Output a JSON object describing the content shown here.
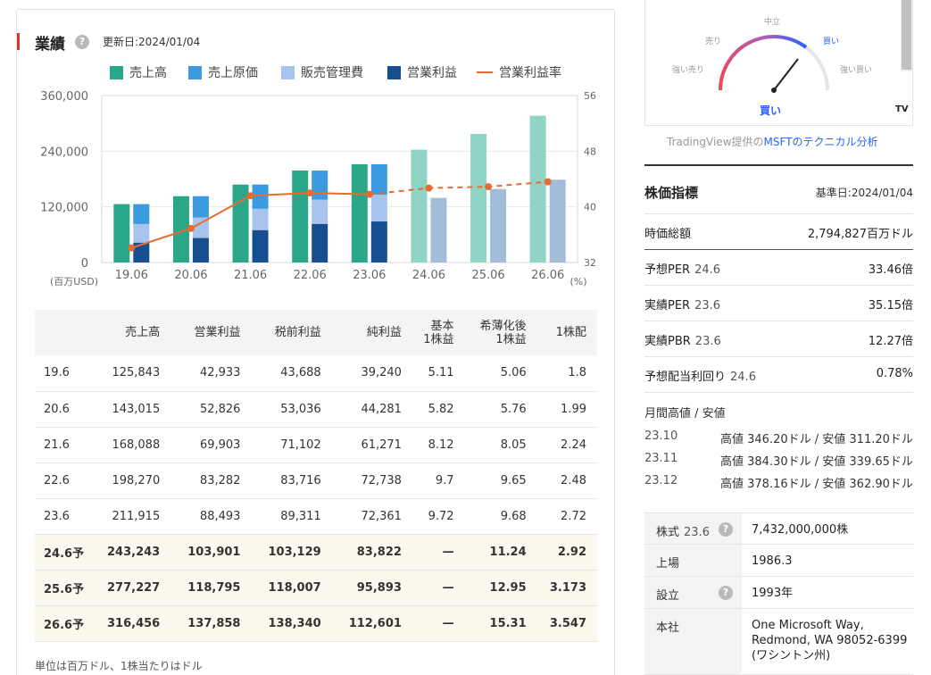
{
  "performance": {
    "title": "業績",
    "help_icon": "?",
    "update_date": "更新日:2024/01/04"
  },
  "legend": [
    {
      "label": "売上高",
      "color": "#2aa789",
      "kind": "box"
    },
    {
      "label": "売上原価",
      "color": "#3c9be0",
      "kind": "box"
    },
    {
      "label": "販売管理費",
      "color": "#a9c3ef",
      "kind": "box"
    },
    {
      "label": "営業利益",
      "color": "#174e8f",
      "kind": "box"
    },
    {
      "label": "営業利益率",
      "color": "#e86b2f",
      "kind": "line"
    }
  ],
  "chart_data": {
    "type": "bar",
    "categories": [
      "19.06",
      "20.06",
      "21.06",
      "22.06",
      "23.06",
      "24.06",
      "25.06",
      "26.06"
    ],
    "y_left": {
      "min": 0,
      "max": 360000,
      "ticks": [
        "0",
        "120,000",
        "240,000",
        "360,000"
      ],
      "tick_values": [
        0,
        120000,
        240000,
        360000
      ],
      "unit": "(百万USD)"
    },
    "y_right": {
      "min": 32,
      "max": 56,
      "ticks": [
        "32",
        "40",
        "48",
        "56"
      ],
      "tick_values": [
        32,
        40,
        48,
        56
      ],
      "unit": "(%)"
    },
    "series": [
      {
        "name": "売上高",
        "values": [
          125843,
          143015,
          168088,
          198270,
          211915,
          243243,
          277227,
          316456
        ]
      },
      {
        "name": "売上原価",
        "values": [
          42910,
          46078,
          52232,
          62650,
          65863,
          null,
          null,
          null
        ]
      },
      {
        "name": "販売管理費",
        "values": [
          40000,
          44111,
          45940,
          52338,
          57529,
          null,
          null,
          null
        ]
      },
      {
        "name": "営業利益",
        "values": [
          42933,
          52826,
          69903,
          83282,
          88493,
          null,
          null,
          null
        ]
      },
      {
        "name": "営業利益率",
        "values": [
          34.1,
          36.9,
          41.6,
          42.0,
          41.8,
          42.7,
          42.9,
          43.6
        ]
      }
    ],
    "forecast_start_index": 5,
    "colors": {
      "sales_actual": "#2aa789",
      "sales_forecast": "#8fd4c4",
      "cost_forecast": "#a3bcd8",
      "grid": "#e8e8e8",
      "line": "#e86b2f"
    }
  },
  "table": {
    "headers": [
      "",
      "売上高",
      "営業利益",
      "税前利益",
      "純利益",
      "基本\n1株益",
      "希薄化後\n1株益",
      "1株配"
    ],
    "rows": [
      {
        "period": "19.6",
        "cells": [
          "125,843",
          "42,933",
          "43,688",
          "39,240",
          "5.11",
          "5.06",
          "1.8"
        ],
        "forecast": false
      },
      {
        "period": "20.6",
        "cells": [
          "143,015",
          "52,826",
          "53,036",
          "44,281",
          "5.82",
          "5.76",
          "1.99"
        ],
        "forecast": false
      },
      {
        "period": "21.6",
        "cells": [
          "168,088",
          "69,903",
          "71,102",
          "61,271",
          "8.12",
          "8.05",
          "2.24"
        ],
        "forecast": false
      },
      {
        "period": "22.6",
        "cells": [
          "198,270",
          "83,282",
          "83,716",
          "72,738",
          "9.7",
          "9.65",
          "2.48"
        ],
        "forecast": false
      },
      {
        "period": "23.6",
        "cells": [
          "211,915",
          "88,493",
          "89,311",
          "72,361",
          "9.72",
          "9.68",
          "2.72"
        ],
        "forecast": false
      },
      {
        "period": "24.6予",
        "cells": [
          "243,243",
          "103,901",
          "103,129",
          "83,822",
          "—",
          "11.24",
          "2.92"
        ],
        "forecast": true
      },
      {
        "period": "25.6予",
        "cells": [
          "277,227",
          "118,795",
          "118,007",
          "95,893",
          "—",
          "12.95",
          "3.173"
        ],
        "forecast": true
      },
      {
        "period": "26.6予",
        "cells": [
          "316,456",
          "137,858",
          "138,340",
          "112,601",
          "—",
          "15.31",
          "3.547"
        ],
        "forecast": true
      }
    ],
    "footnote": "単位は百万ドル、1株当たりはドル"
  },
  "gauge": {
    "labels": {
      "neutral": "中立",
      "sell": "売り",
      "buy": "買い",
      "strong_sell": "強い売り",
      "strong_buy": "強い買い"
    },
    "result": "買い",
    "tv_logo": "TV",
    "caption_prefix": "TradingView提供の",
    "caption_link": "MSFTのテクニカル分析"
  },
  "stock_metrics": {
    "title": "株価指標",
    "ref_date": "基準日:2024/01/04",
    "items": [
      {
        "label": "時価総額",
        "sub": "",
        "value": "2,794,827百万ドル"
      },
      {
        "label": "予想PER",
        "sub": "24.6",
        "value": "33.46倍"
      },
      {
        "label": "実績PER",
        "sub": "23.6",
        "value": "35.15倍"
      },
      {
        "label": "実績PBR",
        "sub": "23.6",
        "value": "12.27倍"
      },
      {
        "label": "予想配当利回り",
        "sub": "24.6",
        "value": "0.78%"
      }
    ]
  },
  "monthly": {
    "title": "月間高値 / 安値",
    "rows": [
      {
        "month": "23.10",
        "range": "高値 346.20ドル / 安値 311.20ドル"
      },
      {
        "month": "23.11",
        "range": "高値 384.30ドル / 安値 339.65ドル"
      },
      {
        "month": "23.12",
        "range": "高値 378.16ドル / 安値 362.90ドル"
      }
    ]
  },
  "company": [
    {
      "key": "株式",
      "sub": "23.6",
      "help": true,
      "value": "7,432,000,000株"
    },
    {
      "key": "上場",
      "sub": "",
      "help": false,
      "value": "1986.3"
    },
    {
      "key": "設立",
      "sub": "",
      "help": true,
      "value": "1993年"
    },
    {
      "key": "本社",
      "sub": "",
      "help": false,
      "value": "One Microsoft Way,\nRedmond, WA 98052-6399\n(ワシントン州)"
    }
  ]
}
